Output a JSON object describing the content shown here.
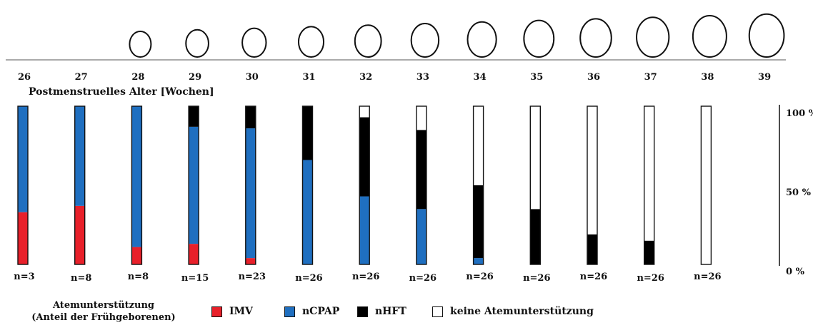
{
  "chart_data": {
    "type": "bar",
    "stacked": true,
    "xlabel": "Postmenstruelles Alter [Wochen]",
    "categories": [
      "26",
      "27",
      "28",
      "29",
      "30",
      "31",
      "32",
      "33",
      "34",
      "35",
      "36",
      "37",
      "38",
      "39"
    ],
    "bar_counts": [
      "n=3",
      "n=8",
      "n=8",
      "n=15",
      "n=23",
      "n=26",
      "n=26",
      "n=26",
      "n=26",
      "n=26",
      "n=26",
      "n=26",
      "n=26",
      ""
    ],
    "y_ticks": [
      {
        "value": 100,
        "label": "100 %"
      },
      {
        "value": 50,
        "label": "50 %"
      },
      {
        "value": 0,
        "label": "0 %"
      }
    ],
    "ylim": [
      0,
      100
    ],
    "series": [
      {
        "name": "IMV",
        "color": "#e8202a",
        "values": [
          33,
          37,
          11,
          13,
          4,
          0,
          0,
          0,
          0,
          0,
          0,
          0,
          0,
          null
        ]
      },
      {
        "name": "nCPAP",
        "color": "#1f6fc0",
        "values": [
          67,
          63,
          89,
          74,
          82,
          66,
          43,
          35,
          4,
          0,
          0,
          0,
          0,
          null
        ]
      },
      {
        "name": "nHFT",
        "color": "#000000",
        "values": [
          0,
          0,
          0,
          13,
          14,
          34,
          50,
          50,
          46,
          35,
          19,
          15,
          0,
          null
        ]
      },
      {
        "name": "keine Atemunterstützung",
        "color": "#ffffff",
        "values": [
          0,
          0,
          0,
          0,
          0,
          0,
          7,
          15,
          50,
          65,
          81,
          85,
          100,
          null
        ]
      }
    ],
    "legend_title": [
      "Atemunterstützung",
      "(Anteil der Frühgeborenen)"
    ]
  }
}
